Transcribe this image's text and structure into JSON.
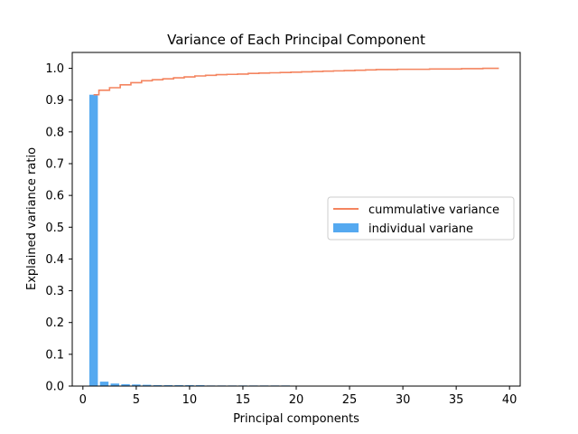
{
  "chart_data": {
    "type": "bar",
    "title": "Variance of Each Principal Component",
    "xlabel": "Principal components",
    "ylabel": "Explained variance ratio",
    "xlim": [
      -1.0,
      41.0
    ],
    "ylim": [
      0.0,
      1.05
    ],
    "xticks": [
      0,
      5,
      10,
      15,
      20,
      25,
      30,
      35,
      40
    ],
    "yticks": [
      0.0,
      0.1,
      0.2,
      0.3,
      0.4,
      0.5,
      0.6,
      0.7,
      0.8,
      0.9,
      1.0
    ],
    "xtick_labels": [
      "0",
      "5",
      "10",
      "15",
      "20",
      "25",
      "30",
      "35",
      "40"
    ],
    "ytick_labels": [
      "0.0",
      "0.1",
      "0.2",
      "0.3",
      "0.4",
      "0.5",
      "0.6",
      "0.7",
      "0.8",
      "0.9",
      "1.0"
    ],
    "legend_position": "center-right",
    "grid": false,
    "colors": {
      "bars": "#55a9f0",
      "line": "#f4845f",
      "axes": "#000000"
    },
    "series": [
      {
        "name": "individual variane",
        "kind": "bar",
        "x": [
          1,
          2,
          3,
          4,
          5,
          6,
          7,
          8,
          9,
          10,
          11,
          12,
          13,
          14,
          15,
          16,
          17,
          18,
          19,
          20,
          21,
          22,
          23,
          24,
          25,
          26,
          27,
          28,
          29,
          30,
          31,
          32,
          33,
          34,
          35,
          36,
          37,
          38,
          39
        ],
        "values": [
          0.917,
          0.014,
          0.008,
          0.006,
          0.005,
          0.004,
          0.003,
          0.003,
          0.003,
          0.003,
          0.003,
          0.002,
          0.002,
          0.002,
          0.002,
          0.002,
          0.002,
          0.002,
          0.002,
          0.001,
          0.001,
          0.001,
          0.001,
          0.001,
          0.001,
          0.001,
          0.001,
          0.001,
          0.001,
          0.001,
          0.001,
          0.001,
          0.001,
          0.001,
          0.001,
          0.001,
          0.001,
          0.001,
          0.001
        ]
      },
      {
        "name": "cummulative variance",
        "kind": "step",
        "x": [
          1,
          2,
          3,
          4,
          5,
          6,
          7,
          8,
          9,
          10,
          11,
          12,
          13,
          14,
          15,
          16,
          17,
          18,
          19,
          20,
          21,
          22,
          23,
          24,
          25,
          26,
          27,
          28,
          29,
          30,
          31,
          32,
          33,
          34,
          35,
          36,
          37,
          38,
          39
        ],
        "values": [
          0.917,
          0.931,
          0.939,
          0.948,
          0.955,
          0.961,
          0.964,
          0.967,
          0.97,
          0.973,
          0.976,
          0.978,
          0.98,
          0.981,
          0.982,
          0.984,
          0.985,
          0.986,
          0.987,
          0.988,
          0.989,
          0.99,
          0.991,
          0.992,
          0.993,
          0.994,
          0.995,
          0.996,
          0.996,
          0.997,
          0.997,
          0.997,
          0.998,
          0.998,
          0.998,
          0.999,
          0.999,
          1.0,
          1.0
        ]
      }
    ]
  }
}
